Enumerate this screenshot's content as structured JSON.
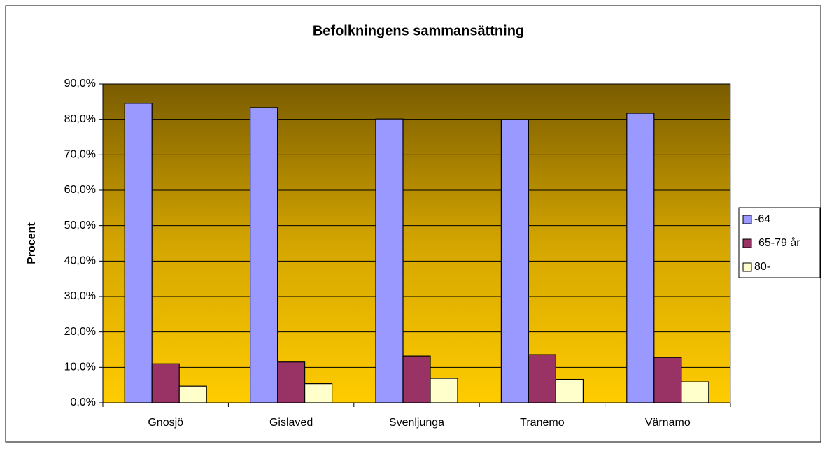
{
  "chart_data": {
    "type": "bar",
    "title": "Befolkningens sammansättning",
    "y_label": "Procent",
    "categories": [
      "Gnosjö",
      "Gislaved",
      "Svenljunga",
      "Tranemo",
      "Värnamo"
    ],
    "series": [
      {
        "name": "-64",
        "color": "#9999ff",
        "values": [
          84.5,
          83.3,
          80.1,
          79.9,
          81.7
        ]
      },
      {
        "name": "65-79 år",
        "color": "#993366",
        "values": [
          11.0,
          11.5,
          13.2,
          13.6,
          12.8
        ]
      },
      {
        "name": "80-",
        "color": "#ffffcc",
        "values": [
          4.7,
          5.4,
          6.9,
          6.6,
          5.9
        ]
      }
    ],
    "ylim": [
      0,
      90
    ],
    "yticks": [
      {
        "value": 0,
        "label": "0,0%"
      },
      {
        "value": 10,
        "label": "10,0%"
      },
      {
        "value": 20,
        "label": "20,0%"
      },
      {
        "value": 30,
        "label": "30,0%"
      },
      {
        "value": 40,
        "label": "40,0%"
      },
      {
        "value": 50,
        "label": "50,0%"
      },
      {
        "value": 60,
        "label": "60,0%"
      },
      {
        "value": 70,
        "label": "70,0%"
      },
      {
        "value": 80,
        "label": "80,0%"
      },
      {
        "value": 90,
        "label": "90,0%"
      }
    ],
    "grid": true,
    "legend": "right"
  }
}
